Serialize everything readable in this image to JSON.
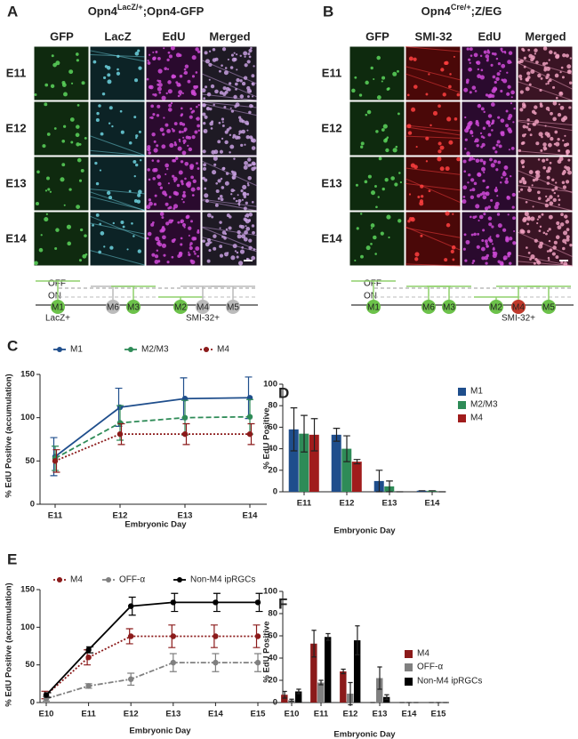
{
  "panels": [
    {
      "letter": "A",
      "title": [
        "Opn4",
        "LacZ/+",
        ";Opn4-GFP"
      ],
      "columns": [
        "GFP",
        "LacZ",
        "EdU",
        "Merged"
      ],
      "rows": [
        "E11",
        "E12",
        "E13",
        "E14"
      ],
      "diagram": {
        "layers": [
          "OFF",
          "ON"
        ],
        "cells": [
          "M1",
          "M6",
          "M3",
          "M2",
          "M4",
          "M5"
        ],
        "notes": [
          "LacZ+",
          "SMI-32+"
        ]
      }
    },
    {
      "letter": "B",
      "title": [
        "Opn4",
        "Cre/+",
        ";Z/EG"
      ],
      "columns": [
        "GFP",
        "SMI-32",
        "EdU",
        "Merged"
      ],
      "rows": [
        "E11",
        "E12",
        "E13",
        "E14"
      ],
      "diagram": {
        "layers": [
          "OFF",
          "ON"
        ],
        "cells": [
          "M1",
          "M6",
          "M3",
          "M2",
          "M4",
          "M5"
        ],
        "notes": [
          "SMI-32+"
        ]
      }
    }
  ],
  "chart_data": [
    {
      "type": "line",
      "panel_label": "C",
      "x_label": "Embryonic Day",
      "y_label": "% EdU Positive (accumulation)",
      "categories": [
        "E11",
        "E12",
        "E13",
        "E14"
      ],
      "ylim": [
        0,
        150
      ],
      "yticks": [
        0,
        50,
        100,
        150
      ],
      "legend": "top",
      "series": [
        {
          "name": "M1",
          "color": "#1f4e8c",
          "dash": "solid",
          "values": [
            55,
            112,
            122,
            123
          ],
          "errors": [
            22,
            22,
            24,
            24
          ]
        },
        {
          "name": "M2/M3",
          "color": "#2e8b57",
          "dash": "dashed",
          "values": [
            53,
            94,
            100,
            101
          ],
          "errors": [
            14,
            20,
            20,
            20
          ]
        },
        {
          "name": "M4",
          "color": "#8b1a1a",
          "dash": "dotted",
          "values": [
            50,
            81,
            81,
            81
          ],
          "errors": [
            13,
            12,
            12,
            12
          ]
        }
      ]
    },
    {
      "type": "bar",
      "panel_label": "D",
      "x_label": "Embryonic Day",
      "y_label": "% EdU Positive",
      "categories": [
        "E11",
        "E12",
        "E13",
        "E14"
      ],
      "ylim": [
        0,
        100
      ],
      "yticks": [
        0,
        20,
        40,
        60,
        80,
        100
      ],
      "legend": "right",
      "series": [
        {
          "name": "M1",
          "color": "#1f4e8c",
          "values": [
            58,
            53,
            10,
            1
          ],
          "errors": [
            20,
            6,
            10,
            0
          ]
        },
        {
          "name": "M2/M3",
          "color": "#2e8b57",
          "values": [
            54,
            40,
            5,
            1
          ],
          "errors": [
            17,
            12,
            5,
            0
          ]
        },
        {
          "name": "M4",
          "color": "#a01c1c",
          "values": [
            53,
            28,
            0,
            0
          ],
          "errors": [
            15,
            2,
            0,
            0
          ]
        }
      ]
    },
    {
      "type": "line",
      "panel_label": "E",
      "x_label": "Embryonic Day",
      "y_label": "% EdU Positive (accumulation)",
      "categories": [
        "E10",
        "E11",
        "E12",
        "E13",
        "E14",
        "E15"
      ],
      "ylim": [
        0,
        150
      ],
      "yticks": [
        0,
        50,
        100,
        150
      ],
      "legend": "top",
      "series": [
        {
          "name": "M4",
          "color": "#8b1a1a",
          "dash": "dotted",
          "values": [
            10,
            60,
            88,
            88,
            88,
            88
          ],
          "errors": [
            5,
            10,
            10,
            15,
            15,
            15
          ]
        },
        {
          "name": "OFF-α",
          "color": "#808080",
          "dash": "dashdot",
          "values": [
            5,
            22,
            31,
            53,
            53,
            53
          ],
          "errors": [
            3,
            3,
            8,
            12,
            12,
            12
          ]
        },
        {
          "name": "Non-M4 ipRGCs",
          "color": "#000000",
          "dash": "solid",
          "values": [
            10,
            70,
            128,
            133,
            133,
            133
          ],
          "errors": [
            3,
            4,
            12,
            12,
            12,
            12
          ]
        }
      ]
    },
    {
      "type": "bar",
      "panel_label": "F",
      "x_label": "Embryonic Day",
      "y_label": "% EdU Positive",
      "categories": [
        "E10",
        "E11",
        "E12",
        "E13",
        "E14",
        "E15"
      ],
      "ylim": [
        0,
        100
      ],
      "yticks": [
        0,
        20,
        40,
        60,
        80,
        100
      ],
      "legend": "right",
      "series": [
        {
          "name": "M4",
          "color": "#8b1a1a",
          "values": [
            7,
            53,
            28,
            0,
            0,
            0
          ],
          "errors": [
            3,
            12,
            2,
            0,
            0,
            0
          ]
        },
        {
          "name": "OFF-α",
          "color": "#808080",
          "values": [
            2,
            18,
            8,
            22,
            0,
            0
          ],
          "errors": [
            1,
            2,
            10,
            10,
            0,
            0
          ]
        },
        {
          "name": "Non-M4 ipRGCs",
          "color": "#000000",
          "values": [
            10,
            59,
            56,
            5,
            0,
            0
          ],
          "errors": [
            2,
            3,
            13,
            2,
            0,
            0
          ]
        }
      ]
    }
  ]
}
